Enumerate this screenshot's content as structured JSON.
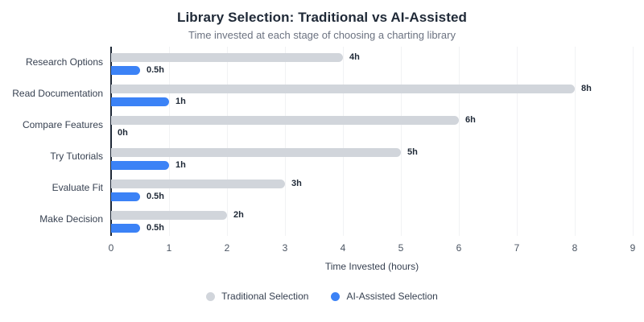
{
  "header": {
    "title": "Library Selection: Traditional vs AI-Assisted",
    "subtitle": "Time invested at each stage of choosing a charting library"
  },
  "chart_data": {
    "type": "bar",
    "orientation": "horizontal",
    "title": "Library Selection: Traditional vs AI-Assisted",
    "subtitle": "Time invested at each stage of choosing a charting library",
    "categories": [
      "Research Options",
      "Read Documentation",
      "Compare Features",
      "Try Tutorials",
      "Evaluate Fit",
      "Make Decision"
    ],
    "series": [
      {
        "name": "Traditional Selection",
        "color": "#d1d5db",
        "values": [
          4,
          8,
          6,
          5,
          3,
          2
        ],
        "labels": [
          "4h",
          "8h",
          "6h",
          "5h",
          "3h",
          "2h"
        ]
      },
      {
        "name": "AI-Assisted Selection",
        "color": "#3b82f6",
        "values": [
          0.5,
          1,
          0,
          1,
          0.5,
          0.5
        ],
        "labels": [
          "0.5h",
          "1h",
          "0h",
          "1h",
          "0.5h",
          "0.5h"
        ]
      }
    ],
    "xlabel": "Time Invested (hours)",
    "xlim": [
      0,
      9
    ],
    "xticks": [
      0,
      1,
      2,
      3,
      4,
      5,
      6,
      7,
      8,
      9
    ],
    "grid": true,
    "legend_position": "bottom",
    "colors": {
      "title": "#1f2937",
      "subtitle": "#6b7280",
      "axis_labels": "#374151",
      "gridline": "#f1f2f4",
      "axis_line": "#1f2937",
      "background": "#ffffff"
    }
  }
}
